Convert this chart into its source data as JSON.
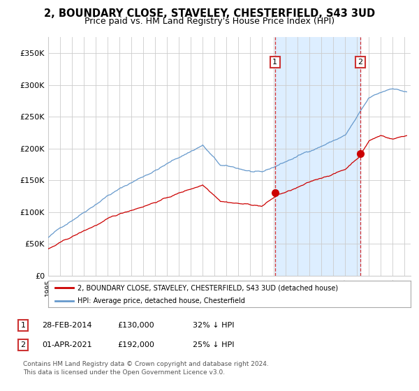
{
  "title": "2, BOUNDARY CLOSE, STAVELEY, CHESTERFIELD, S43 3UD",
  "subtitle": "Price paid vs. HM Land Registry's House Price Index (HPI)",
  "title_fontsize": 10.5,
  "subtitle_fontsize": 9,
  "legend_label_red": "2, BOUNDARY CLOSE, STAVELEY, CHESTERFIELD, S43 3UD (detached house)",
  "legend_label_blue": "HPI: Average price, detached house, Chesterfield",
  "annotation1_text": "28-FEB-2014",
  "annotation1_price": "£130,000",
  "annotation1_hpi": "32% ↓ HPI",
  "annotation2_text": "01-APR-2021",
  "annotation2_price": "£192,000",
  "annotation2_hpi": "25% ↓ HPI",
  "footer_line1": "Contains HM Land Registry data © Crown copyright and database right 2024.",
  "footer_line2": "This data is licensed under the Open Government Licence v3.0.",
  "ylim": [
    0,
    375000
  ],
  "yticks": [
    0,
    50000,
    100000,
    150000,
    200000,
    250000,
    300000,
    350000
  ],
  "ytick_labels": [
    "£0",
    "£50K",
    "£100K",
    "£150K",
    "£200K",
    "£250K",
    "£300K",
    "£350K"
  ],
  "xlim_start": 1995.0,
  "xlim_end": 2025.5,
  "red_color": "#cc0000",
  "blue_color": "#6699cc",
  "shade_color": "#ddeeff",
  "grid_color": "#cccccc",
  "background_color": "#ffffff",
  "marker_size": 7,
  "ann1_x": 2014.083,
  "ann2_x": 2021.25,
  "ann1_y": 130000,
  "ann2_y": 192000
}
